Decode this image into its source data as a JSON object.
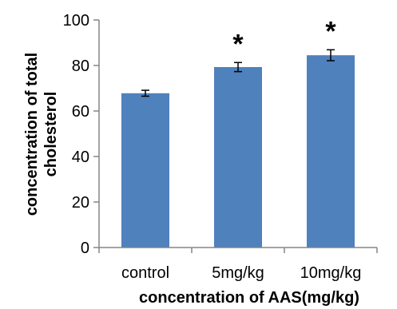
{
  "chart_data": {
    "type": "bar",
    "categories": [
      "control",
      "5mg/kg",
      "10mg/kg"
    ],
    "values": [
      67.8,
      79.3,
      84.5
    ],
    "errors": [
      1.3,
      2.0,
      2.4
    ],
    "markers": [
      "",
      "*",
      "*"
    ],
    "title": "",
    "xlabel": "concentration of AAS(mg/kg)",
    "ylabel_lines": [
      "concentration of total",
      "cholesterol"
    ],
    "ylim": [
      0,
      100
    ],
    "yticks": [
      0,
      20,
      40,
      60,
      80,
      100
    ],
    "grid": false,
    "legend": "none",
    "bar_color": "#4F81BD"
  }
}
